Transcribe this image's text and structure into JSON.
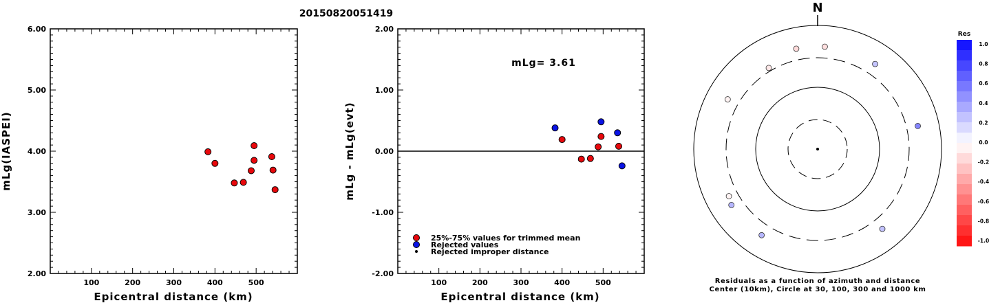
{
  "title": "20150820051419",
  "chart_data": [
    {
      "type": "scatter",
      "xlabel": "Epicentral distance (km)",
      "ylabel": "mLg(IASPEI)",
      "xlim": [
        0,
        600
      ],
      "ylim": [
        2.0,
        6.0
      ],
      "x_ticks": [
        100,
        200,
        300,
        400,
        500
      ],
      "y_ticks": [
        2.0,
        3.0,
        4.0,
        5.0,
        6.0
      ],
      "y_tick_labels": [
        "2.00",
        "3.00",
        "4.00",
        "5.00",
        "6.00"
      ],
      "series": [
        {
          "color": "#e8080c",
          "points": [
            {
              "x": 383,
              "y": 3.99
            },
            {
              "x": 400,
              "y": 3.8
            },
            {
              "x": 447,
              "y": 3.48
            },
            {
              "x": 469,
              "y": 3.49
            },
            {
              "x": 488,
              "y": 3.68
            },
            {
              "x": 495,
              "y": 3.85
            },
            {
              "x": 495,
              "y": 4.09
            },
            {
              "x": 538,
              "y": 3.91
            },
            {
              "x": 541,
              "y": 3.69
            },
            {
              "x": 546,
              "y": 3.37
            }
          ]
        }
      ]
    },
    {
      "type": "scatter",
      "xlabel": "Epicentral distance (km)",
      "ylabel": "mLg - mLg(evt)",
      "xlim": [
        0,
        600
      ],
      "ylim": [
        -2.0,
        2.0
      ],
      "x_ticks": [
        100,
        200,
        300,
        400,
        500
      ],
      "y_ticks": [
        -2.0,
        -1.0,
        0.0,
        1.0,
        2.0
      ],
      "y_tick_labels": [
        "-2.00",
        "-1.00",
        "0.00",
        "1.00",
        "2.00"
      ],
      "zero_line": 0.0,
      "annotation": "mLg= 3.61",
      "series": [
        {
          "name": "25%-75% values for trimmed mean",
          "color": "#e8080c",
          "points": [
            {
              "x": 400,
              "y": 0.19
            },
            {
              "x": 447,
              "y": -0.13
            },
            {
              "x": 469,
              "y": -0.12
            },
            {
              "x": 488,
              "y": 0.07
            },
            {
              "x": 495,
              "y": 0.24
            },
            {
              "x": 538,
              "y": 0.08
            }
          ]
        },
        {
          "name": "Rejected values",
          "color": "#0a14e6",
          "points": [
            {
              "x": 383,
              "y": 0.38
            },
            {
              "x": 495,
              "y": 0.48
            },
            {
              "x": 535,
              "y": 0.3
            },
            {
              "x": 546,
              "y": -0.24
            }
          ]
        },
        {
          "name": "Rejected improper distance",
          "color": "#000000",
          "points": []
        }
      ]
    },
    {
      "type": "polar",
      "north_label": "N",
      "caption_line1": "Residuals as a function of azimuth and distance",
      "caption_line2": "Center (10km), Circle at 30, 100, 300 and 1000 km",
      "rings_km": [
        30,
        100,
        300,
        1000
      ],
      "points": [
        {
          "azimuth_deg": 348,
          "distance_km": 1000,
          "residual": -0.15
        },
        {
          "azimuth_deg": 4,
          "distance_km": 1000,
          "residual": -0.13
        },
        {
          "azimuth_deg": 34,
          "distance_km": 1000,
          "residual": 0.24
        },
        {
          "azimuth_deg": 329,
          "distance_km": 700,
          "residual": -0.1
        },
        {
          "azimuth_deg": 299,
          "distance_km": 1000,
          "residual": -0.05
        },
        {
          "azimuth_deg": 77,
          "distance_km": 1000,
          "residual": 0.5
        },
        {
          "azimuth_deg": 242,
          "distance_km": 900,
          "residual": -0.05
        },
        {
          "azimuth_deg": 237,
          "distance_km": 1000,
          "residual": 0.3
        },
        {
          "azimuth_deg": 213,
          "distance_km": 1000,
          "residual": 0.3
        },
        {
          "azimuth_deg": 141,
          "distance_km": 1000,
          "residual": 0.25
        }
      ],
      "colorbar": {
        "title": "Res",
        "labels": [
          "1.0",
          "0.8",
          "0.6",
          "0.4",
          "0.2",
          "0.0",
          "-0.2",
          "-0.4",
          "-0.6",
          "-0.8",
          "-1.0"
        ]
      }
    }
  ]
}
